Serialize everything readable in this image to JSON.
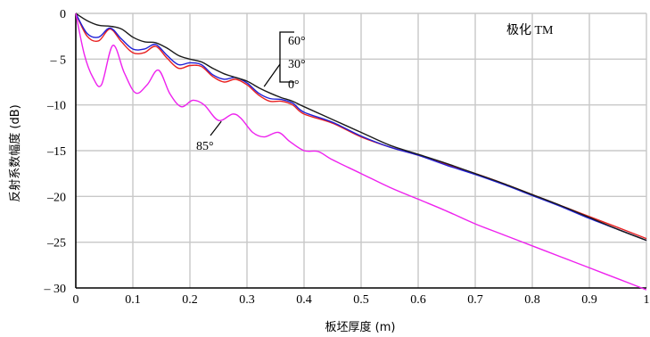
{
  "chart_data": {
    "type": "line",
    "title": "",
    "xlabel": "板坯厚度 (m)",
    "ylabel": "反射系数幅度 (dB)",
    "xlim": [
      0,
      1
    ],
    "ylim": [
      -30,
      0
    ],
    "xticks": [
      0,
      0.1,
      0.2,
      0.3,
      0.4,
      0.5,
      0.6,
      0.7,
      0.8,
      0.9,
      1
    ],
    "xtick_labels": [
      "0",
      "0.1",
      "0.2",
      "0.3",
      "0.4",
      "0.5",
      "0.6",
      "0.7",
      "0.8",
      "0.9",
      "1"
    ],
    "yticks": [
      0,
      -5,
      -10,
      -15,
      -20,
      -25,
      -30
    ],
    "ytick_labels": [
      "0",
      "– 5",
      "–10",
      "–15",
      "–20",
      "–25",
      "– 30"
    ],
    "grid": true,
    "polarization_label": "极化 TM",
    "series": [
      {
        "name": "60°",
        "color": "#1a1a1a",
        "x": [
          0,
          0.02,
          0.04,
          0.06,
          0.08,
          0.1,
          0.12,
          0.14,
          0.16,
          0.18,
          0.2,
          0.22,
          0.24,
          0.26,
          0.28,
          0.3,
          0.32,
          0.34,
          0.36,
          0.38,
          0.4,
          0.45,
          0.5,
          0.55,
          0.6,
          0.65,
          0.7,
          0.75,
          0.8,
          0.85,
          0.9,
          0.95,
          1.0
        ],
        "y": [
          0,
          -0.8,
          -1.3,
          -1.4,
          -1.7,
          -2.6,
          -3.1,
          -3.2,
          -3.8,
          -4.6,
          -5.0,
          -5.3,
          -6.0,
          -6.6,
          -7.0,
          -7.4,
          -8.1,
          -8.7,
          -9.2,
          -9.6,
          -10.2,
          -11.6,
          -13.0,
          -14.4,
          -15.4,
          -16.4,
          -17.5,
          -18.6,
          -19.8,
          -21.0,
          -22.3,
          -23.6,
          -24.8
        ]
      },
      {
        "name": "30°",
        "color": "#1f1fd6",
        "x": [
          0,
          0.02,
          0.04,
          0.06,
          0.08,
          0.1,
          0.12,
          0.14,
          0.16,
          0.18,
          0.2,
          0.22,
          0.24,
          0.26,
          0.28,
          0.3,
          0.32,
          0.34,
          0.36,
          0.38,
          0.4,
          0.45,
          0.5,
          0.55,
          0.6,
          0.65,
          0.7,
          0.75,
          0.8,
          0.85,
          0.9,
          0.95,
          1.0
        ],
        "y": [
          0,
          -2.2,
          -2.6,
          -1.6,
          -2.8,
          -3.9,
          -3.9,
          -3.4,
          -4.6,
          -5.6,
          -5.4,
          -5.6,
          -6.7,
          -7.2,
          -7.0,
          -7.6,
          -8.7,
          -9.3,
          -9.4,
          -9.8,
          -10.8,
          -11.9,
          -13.4,
          -14.6,
          -15.5,
          -16.6,
          -17.6,
          -18.7,
          -19.9,
          -21.1,
          -22.4,
          -23.6,
          -24.8
        ]
      },
      {
        "name": "0°",
        "color": "#e82020",
        "x": [
          0,
          0.02,
          0.04,
          0.06,
          0.08,
          0.1,
          0.12,
          0.14,
          0.16,
          0.18,
          0.2,
          0.22,
          0.24,
          0.26,
          0.28,
          0.3,
          0.32,
          0.34,
          0.36,
          0.38,
          0.4,
          0.45,
          0.5,
          0.55,
          0.6,
          0.65,
          0.7,
          0.75,
          0.8,
          0.85,
          0.9,
          0.95,
          1.0
        ],
        "y": [
          0,
          -2.5,
          -3.0,
          -1.7,
          -3.1,
          -4.3,
          -4.3,
          -3.6,
          -4.9,
          -6.0,
          -5.7,
          -5.8,
          -6.9,
          -7.5,
          -7.2,
          -7.8,
          -8.9,
          -9.6,
          -9.6,
          -10.0,
          -11.0,
          -12.0,
          -13.5,
          -14.6,
          -15.5,
          -16.5,
          -17.5,
          -18.6,
          -19.8,
          -21.0,
          -22.2,
          -23.4,
          -24.6
        ]
      },
      {
        "name": "85°",
        "color": "#ee22ee",
        "x": [
          0,
          0.015,
          0.03,
          0.045,
          0.065,
          0.085,
          0.105,
          0.125,
          0.145,
          0.165,
          0.185,
          0.205,
          0.225,
          0.25,
          0.275,
          0.29,
          0.31,
          0.33,
          0.355,
          0.375,
          0.4,
          0.425,
          0.45,
          0.5,
          0.55,
          0.6,
          0.65,
          0.7,
          0.75,
          0.8,
          0.85,
          0.9,
          0.95,
          1.0
        ],
        "y": [
          0,
          -4.5,
          -7.0,
          -7.8,
          -3.5,
          -6.5,
          -8.7,
          -7.8,
          -6.2,
          -8.8,
          -10.2,
          -9.5,
          -10.0,
          -11.7,
          -11.0,
          -11.5,
          -13.0,
          -13.5,
          -13.0,
          -14.0,
          -15.0,
          -15.1,
          -16.0,
          -17.5,
          -19.0,
          -20.3,
          -21.6,
          -23.0,
          -24.2,
          -25.4,
          -26.6,
          -27.8,
          -29.0,
          -30.2
        ]
      }
    ],
    "annotations": [
      {
        "text": "60°",
        "series": "60°"
      },
      {
        "text": "30°",
        "series": "30°"
      },
      {
        "text": "0°",
        "series": "0°"
      },
      {
        "text": "85°",
        "series": "85°"
      }
    ]
  }
}
